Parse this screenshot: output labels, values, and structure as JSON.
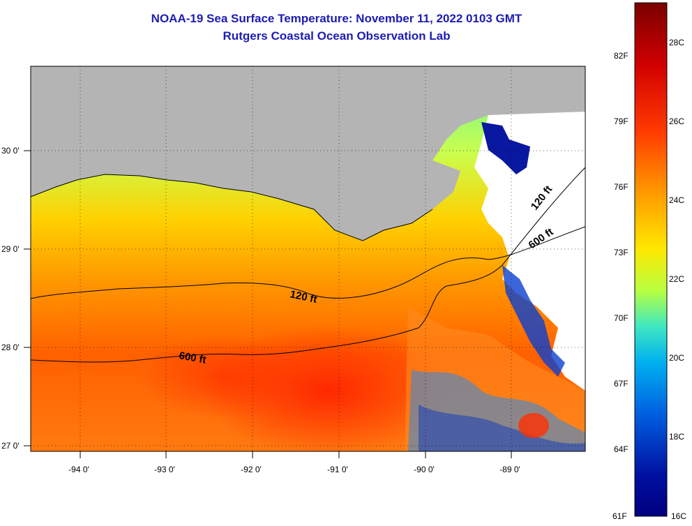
{
  "header": {
    "title": "NOAA-19 Sea Surface Temperature:  November 11, 2022 0103 GMT",
    "subtitle": "Rutgers Coastal Ocean Observation Lab"
  },
  "map": {
    "lon_range": [
      -94.55,
      -88.2
    ],
    "lat_range": [
      26.93,
      28.25
    ],
    "lon_ticks": [
      "-94 0'",
      "-93 0'",
      "-92 0'",
      "-91 0'",
      "-90 0'",
      "-89 0'"
    ],
    "lat_ticks": [
      "30 0'",
      "29 0'",
      "28 0'",
      "27 0'"
    ],
    "contours": [
      {
        "label": "120 ft"
      },
      {
        "label": "600 ft"
      },
      {
        "label": "120 ft"
      },
      {
        "label": "600 ft"
      }
    ],
    "colors": {
      "land": "#b4b4b4",
      "cloud": "#ffffff"
    }
  },
  "colorbar": {
    "fahrenheit": [
      "82F",
      "79F",
      "76F",
      "73F",
      "70F",
      "67F",
      "64F",
      "61F"
    ],
    "celsius": [
      "28C",
      "26C",
      "24C",
      "22C",
      "20C",
      "18C",
      "16C"
    ],
    "colors": [
      "#7a0000",
      "#d00000",
      "#ff3a00",
      "#ff9a00",
      "#ffe800",
      "#b8ff40",
      "#40e8c0",
      "#00b0f0",
      "#0060e0",
      "#0010a0",
      "#000080"
    ]
  }
}
